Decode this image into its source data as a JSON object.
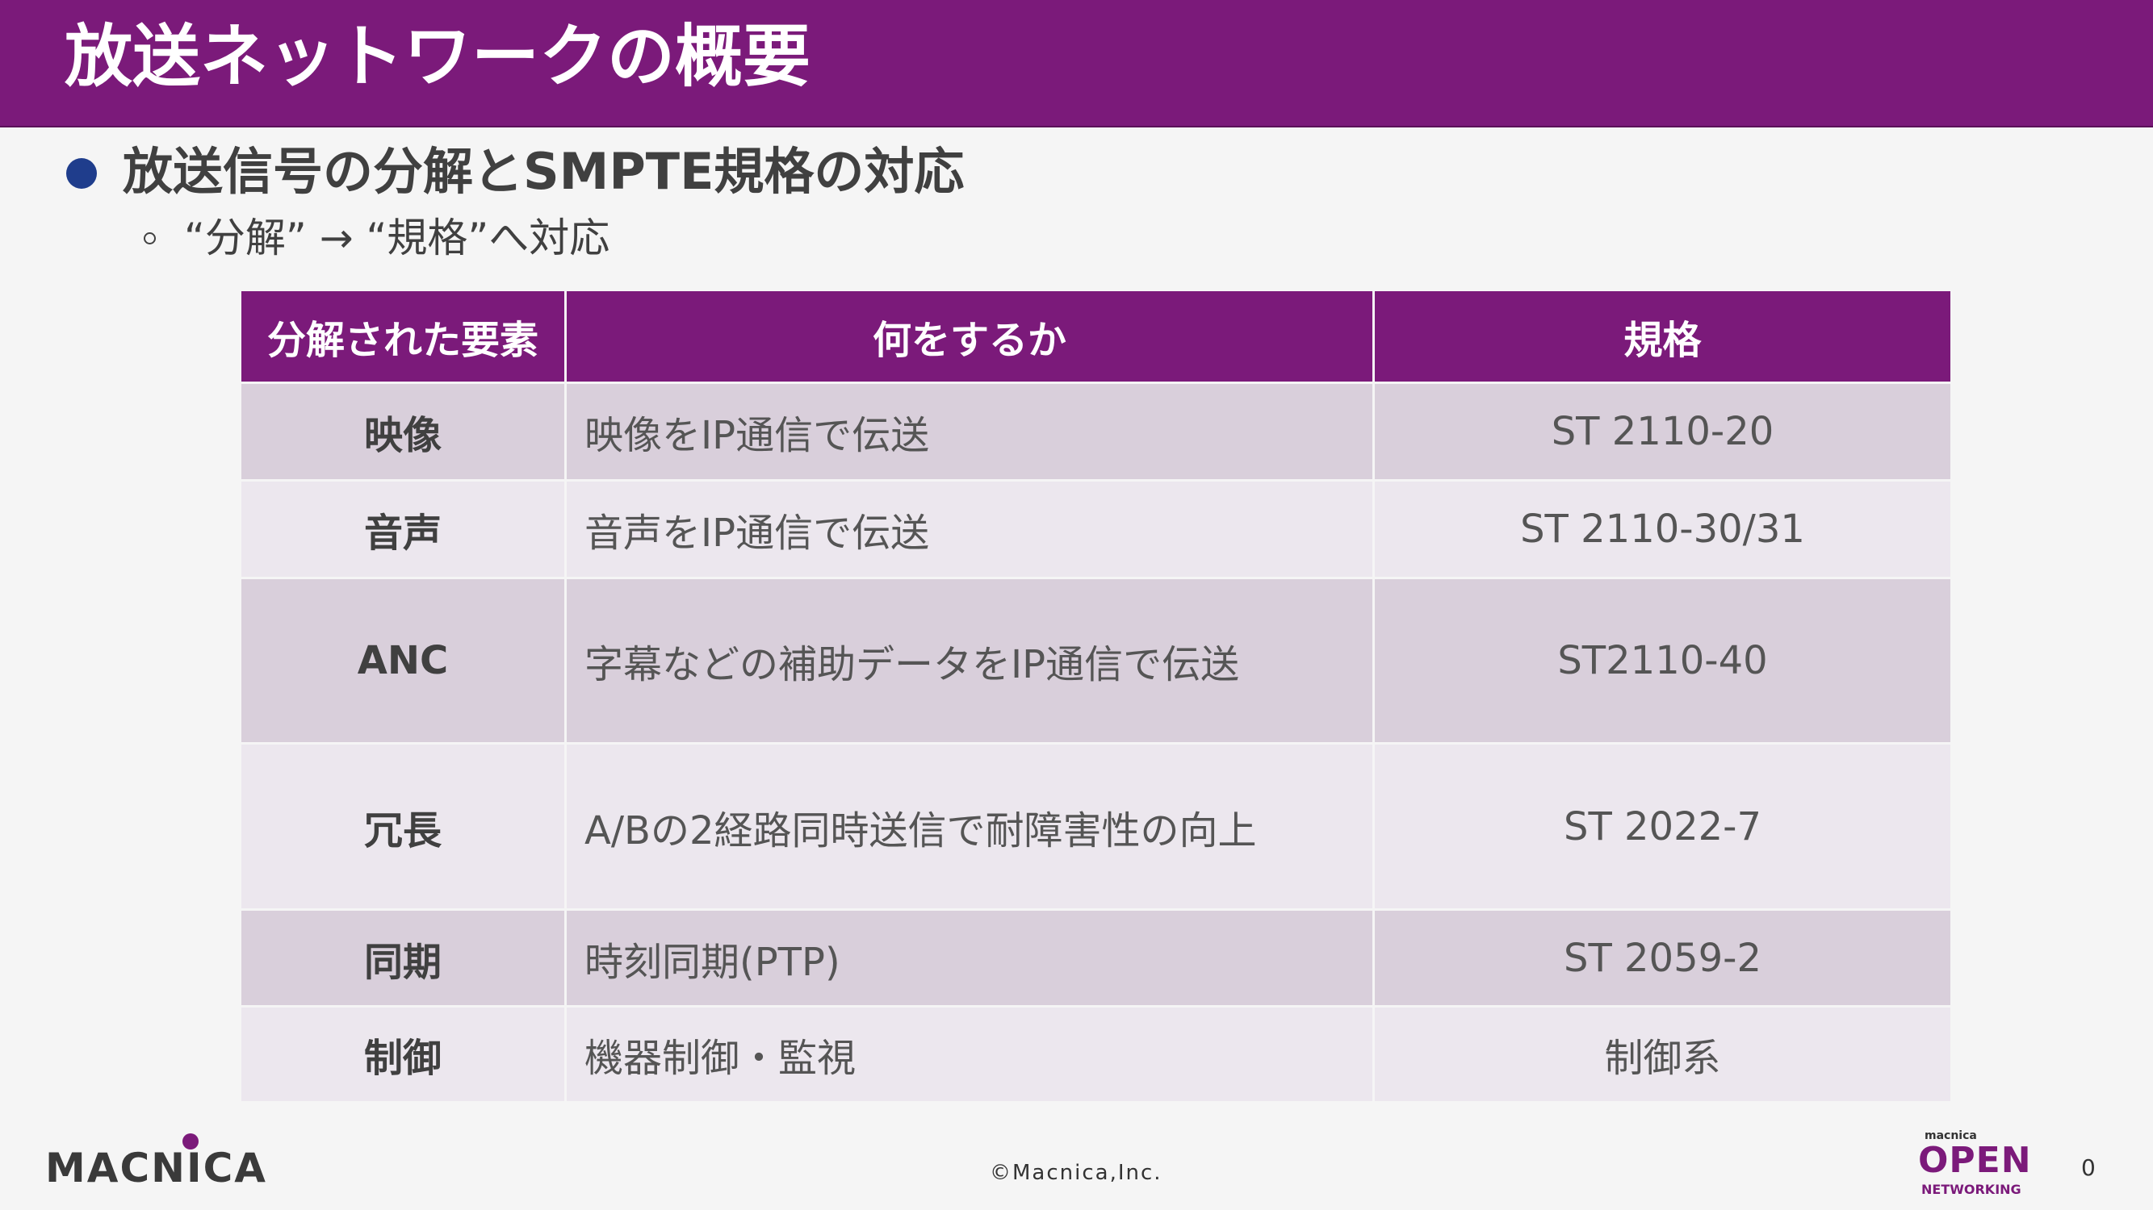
{
  "title": "放送ネットワークの概要",
  "bullet": "放送信号の分解とSMPTE規格の対応",
  "sub_bullet": "“分解” → “規格”へ対応",
  "table": {
    "headers": [
      "分解された要素",
      "何をするか",
      "規格"
    ],
    "rows": [
      {
        "element": "映像",
        "description": "映像をIP通信で伝送",
        "standard": "ST 2110-20"
      },
      {
        "element": "音声",
        "description": "音声をIP通信で伝送",
        "standard": "ST 2110-30/31"
      },
      {
        "element": "ANC",
        "description": "字幕などの補助データをIP通信で伝送",
        "standard": "ST2110-40"
      },
      {
        "element": "冗長",
        "description": "A/Bの2経路同時送信で耐障害性の向上",
        "standard": "ST 2022-7"
      },
      {
        "element": "同期",
        "description": "時刻同期(PTP)",
        "standard": "ST 2059-2"
      },
      {
        "element": "制御",
        "description": "機器制御・監視",
        "standard": "制御系"
      }
    ]
  },
  "footer": {
    "logo_left": "MACNICA",
    "copyright": "©Macnica,Inc.",
    "logo_right_small": "macnica",
    "logo_right_big": "OPEN",
    "logo_right_sub": "NETWORKING",
    "page_number": "0"
  },
  "colors": {
    "accent": "#7b1a7a",
    "bullet": "#1f3d8c",
    "row_odd": "#d9cfdb",
    "row_even": "#ece7ee",
    "background": "#f5f5f5"
  }
}
